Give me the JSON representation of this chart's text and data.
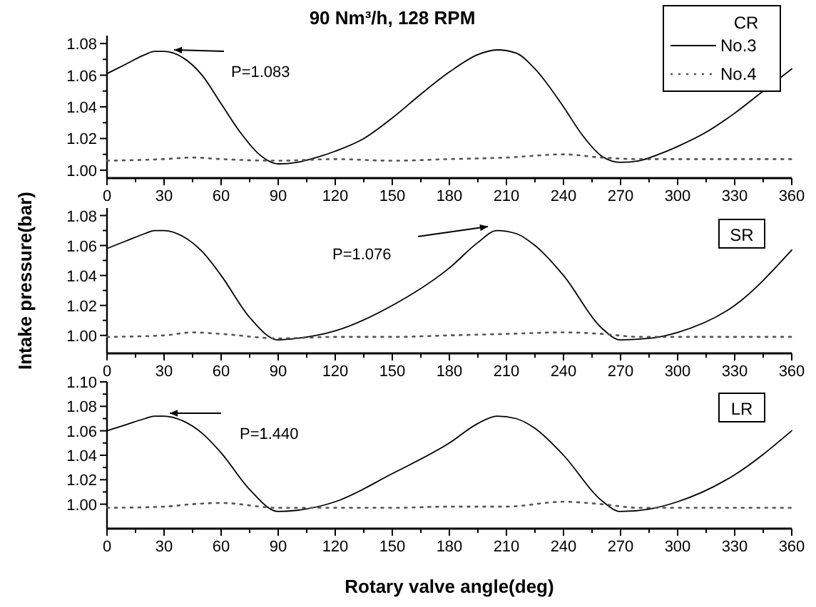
{
  "chart_data": [
    {
      "type": "line",
      "title": "90 Nm³/h, 128 RPM",
      "legend_title": "CR",
      "legend": "top right",
      "xlim": [
        0,
        360
      ],
      "xticks": [
        0,
        30,
        60,
        90,
        120,
        150,
        180,
        210,
        240,
        270,
        300,
        330,
        360
      ],
      "ylim": [
        0.995,
        1.085
      ],
      "yticks": [
        {
          "value": 1,
          "label": "1.00"
        },
        {
          "value": 1.02,
          "label": "1.02"
        },
        {
          "value": 1.04,
          "label": "1.04"
        },
        {
          "value": 1.06,
          "label": "1.06"
        },
        {
          "value": 1.08,
          "label": "1.08"
        }
      ],
      "annotations": [
        "P=1.083"
      ],
      "series": [
        {
          "name": "No.3",
          "color": "#000000",
          "line_style": "solid",
          "x": [
            0,
            10,
            20,
            25,
            30,
            40,
            50,
            60,
            70,
            80,
            90,
            100,
            110,
            120,
            135,
            150,
            165,
            180,
            195,
            205,
            215,
            225,
            240,
            250,
            260,
            270,
            280,
            290,
            300,
            315,
            330,
            345,
            360
          ],
          "values": [
            1.061,
            1.067,
            1.073,
            1.075,
            1.075,
            1.071,
            1.06,
            1.042,
            1.024,
            1.01,
            1.004,
            1.005,
            1.008,
            1.012,
            1.02,
            1.033,
            1.048,
            1.062,
            1.073,
            1.076,
            1.074,
            1.064,
            1.04,
            1.022,
            1.009,
            1.005,
            1.006,
            1.01,
            1.015,
            1.024,
            1.036,
            1.05,
            1.064
          ]
        },
        {
          "name": "No.4",
          "color": "#555555",
          "line_style": "dotted",
          "x": [
            0,
            30,
            45,
            60,
            90,
            120,
            150,
            180,
            210,
            240,
            260,
            280,
            300,
            330,
            360
          ],
          "values": [
            1.006,
            1.007,
            1.008,
            1.007,
            1.006,
            1.007,
            1.006,
            1.007,
            1.008,
            1.01,
            1.008,
            1.007,
            1.007,
            1.007,
            1.007
          ]
        }
      ]
    },
    {
      "type": "line",
      "ylabel": "Intake pressure(bar)",
      "xlim": [
        0,
        360
      ],
      "xticks": [
        0,
        30,
        60,
        90,
        120,
        150,
        180,
        210,
        240,
        270,
        300,
        330,
        360
      ],
      "ylim": [
        0.988,
        1.085
      ],
      "yticks": [
        {
          "value": 1,
          "label": "1.00"
        },
        {
          "value": 1.02,
          "label": "1.02"
        },
        {
          "value": 1.04,
          "label": "1.04"
        },
        {
          "value": 1.06,
          "label": "1.06"
        },
        {
          "value": 1.08,
          "label": "1.08"
        }
      ],
      "annotations": [
        "P=1.076",
        "SR"
      ],
      "series": [
        {
          "color": "#000000",
          "line_style": "solid",
          "x": [
            0,
            10,
            20,
            25,
            30,
            40,
            50,
            60,
            75,
            90,
            100,
            120,
            150,
            180,
            195,
            205,
            215,
            225,
            240,
            260,
            270,
            285,
            300,
            330,
            360
          ],
          "values": [
            1.058,
            1.063,
            1.068,
            1.07,
            1.07,
            1.066,
            1.056,
            1.04,
            1.012,
            0.997,
            0.998,
            1.003,
            1.02,
            1.045,
            1.062,
            1.07,
            1.068,
            1.06,
            1.04,
            1.005,
            0.997,
            0.998,
            1.002,
            1.02,
            1.057
          ]
        },
        {
          "color": "#555555",
          "line_style": "dotted",
          "x": [
            0,
            30,
            45,
            60,
            90,
            120,
            150,
            180,
            210,
            240,
            260,
            280,
            300,
            330,
            360
          ],
          "values": [
            0.999,
            1.0,
            1.002,
            1.001,
            0.998,
            0.999,
            0.999,
            1.0,
            1.001,
            1.002,
            1.001,
            0.999,
            0.999,
            0.999,
            0.999
          ]
        }
      ]
    },
    {
      "type": "line",
      "xlabel": "Rotary valve angle(deg)",
      "xlim": [
        0,
        360
      ],
      "xticks": [
        0,
        30,
        60,
        90,
        120,
        150,
        180,
        210,
        240,
        270,
        300,
        330,
        360
      ],
      "ylim": [
        0.98,
        1.1
      ],
      "yticks": [
        {
          "value": 1,
          "label": "1.00"
        },
        {
          "value": 1.02,
          "label": "1.02"
        },
        {
          "value": 1.04,
          "label": "1.04"
        },
        {
          "value": 1.06,
          "label": "1.06"
        },
        {
          "value": 1.08,
          "label": "1.08"
        },
        {
          "value": 1.1,
          "label": "1.10"
        }
      ],
      "annotations": [
        "P=1.440",
        "LR"
      ],
      "series": [
        {
          "color": "#000000",
          "line_style": "solid",
          "x": [
            0,
            10,
            20,
            25,
            30,
            40,
            50,
            60,
            75,
            90,
            100,
            120,
            150,
            180,
            195,
            205,
            215,
            225,
            240,
            260,
            270,
            285,
            300,
            330,
            360
          ],
          "values": [
            1.06,
            1.065,
            1.07,
            1.072,
            1.072,
            1.068,
            1.058,
            1.042,
            1.012,
            0.994,
            0.995,
            1.002,
            1.025,
            1.05,
            1.066,
            1.072,
            1.07,
            1.062,
            1.04,
            1.003,
            0.994,
            0.996,
            1.002,
            1.024,
            1.06
          ]
        },
        {
          "color": "#555555",
          "line_style": "dotted",
          "x": [
            0,
            30,
            45,
            60,
            90,
            120,
            150,
            180,
            210,
            240,
            260,
            280,
            300,
            330,
            360
          ],
          "values": [
            0.997,
            0.998,
            1.0,
            1.001,
            0.997,
            0.997,
            0.997,
            0.998,
            0.998,
            1.002,
            1.0,
            0.997,
            0.997,
            0.997,
            0.997
          ]
        }
      ]
    }
  ]
}
